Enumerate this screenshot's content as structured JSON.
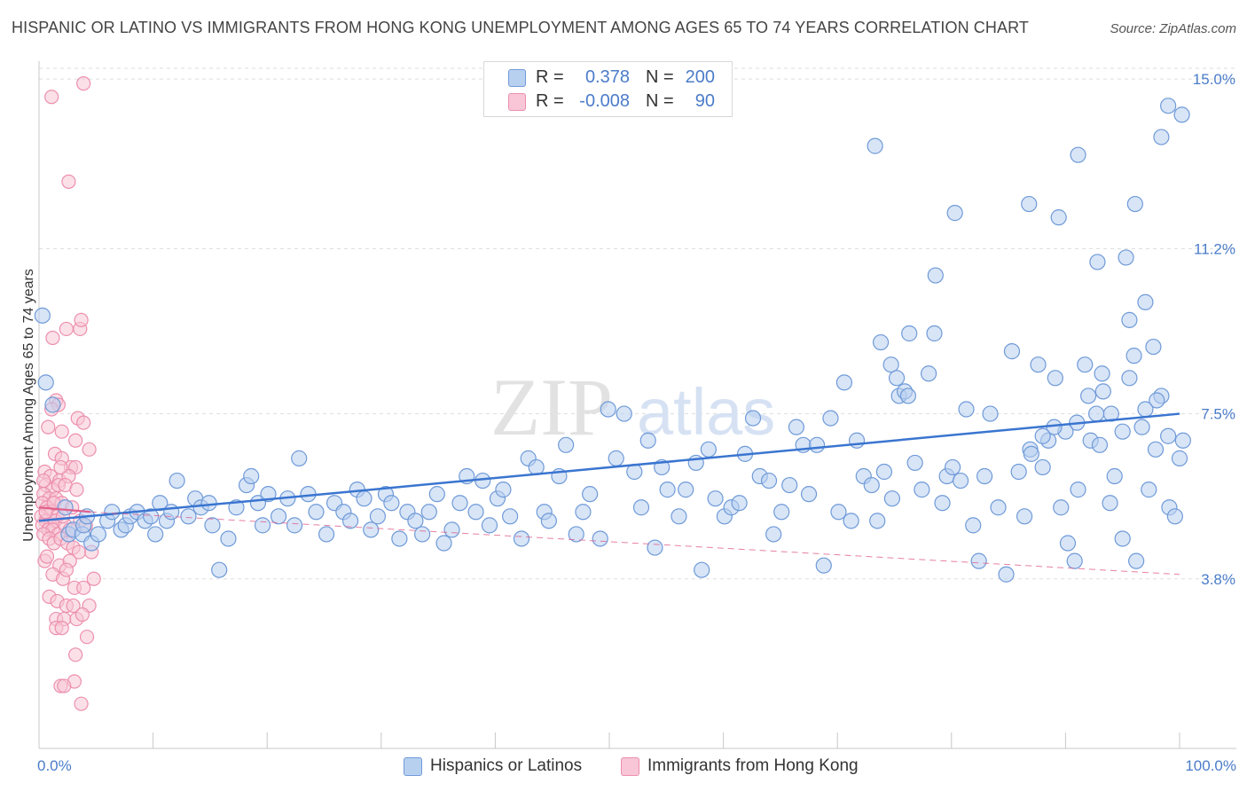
{
  "title": "HISPANIC OR LATINO VS IMMIGRANTS FROM HONG KONG UNEMPLOYMENT AMONG AGES 65 TO 74 YEARS CORRELATION CHART",
  "source": "Source: ZipAtlas.com",
  "watermark": {
    "part1": "ZIP",
    "part2": "atlas"
  },
  "legend": {
    "r_label": "R =",
    "n_label": "N =",
    "series": [
      {
        "r": "0.378",
        "n": "200"
      },
      {
        "r": "-0.008",
        "n": "90"
      }
    ]
  },
  "bottom_legend": [
    "Hispanics or Latinos",
    "Immigrants from Hong Kong"
  ],
  "colors": {
    "blue_fill": "#b8d0f0",
    "blue_stroke": "#6f9ad8",
    "blue_line": "#3a75d0",
    "pink_fill": "#f8c6d6",
    "pink_stroke": "#ec8fae",
    "pink_line": "#e0608c",
    "tick_text": "#4a7cc9",
    "grid": "#dddddd"
  },
  "chart_data": {
    "type": "scatter",
    "ylabel": "Unemployment Among Ages 65 to 74 years",
    "xlim": [
      0,
      100
    ],
    "ylim": [
      0,
      15.4
    ],
    "x_tick_labels": [
      "0.0%",
      "100.0%"
    ],
    "y_ticks": [
      3.8,
      7.5,
      11.2,
      15.0
    ],
    "y_tick_labels": [
      "3.8%",
      "7.5%",
      "11.2%",
      "15.0%"
    ],
    "grid": true,
    "legend_position": "top-center",
    "series": [
      {
        "name": "Hispanics or Latinos",
        "trend": {
          "x": [
            0,
            100
          ],
          "y": [
            5.1,
            7.5
          ]
        },
        "points": [
          [
            0.3,
            9.7
          ],
          [
            0.6,
            8.2
          ],
          [
            1.2,
            7.7
          ],
          [
            2.3,
            5.4
          ],
          [
            2.6,
            4.8
          ],
          [
            3.0,
            4.9
          ],
          [
            3.8,
            4.8
          ],
          [
            3.9,
            5.0
          ],
          [
            4.2,
            5.2
          ],
          [
            4.6,
            4.6
          ],
          [
            5.2,
            4.8
          ],
          [
            6.0,
            5.1
          ],
          [
            6.4,
            5.3
          ],
          [
            7.2,
            4.9
          ],
          [
            7.6,
            5.0
          ],
          [
            8.0,
            5.2
          ],
          [
            8.6,
            5.3
          ],
          [
            9.3,
            5.1
          ],
          [
            9.8,
            5.2
          ],
          [
            10.2,
            4.8
          ],
          [
            10.6,
            5.5
          ],
          [
            11.2,
            5.1
          ],
          [
            11.6,
            5.3
          ],
          [
            12.1,
            6.0
          ],
          [
            13.1,
            5.2
          ],
          [
            13.7,
            5.6
          ],
          [
            14.2,
            5.4
          ],
          [
            14.9,
            5.5
          ],
          [
            15.2,
            5.0
          ],
          [
            15.8,
            4.0
          ],
          [
            16.6,
            4.7
          ],
          [
            17.3,
            5.4
          ],
          [
            18.2,
            5.9
          ],
          [
            18.6,
            6.1
          ],
          [
            19.2,
            5.5
          ],
          [
            19.6,
            5.0
          ],
          [
            20.1,
            5.7
          ],
          [
            21.0,
            5.2
          ],
          [
            21.8,
            5.6
          ],
          [
            22.4,
            5.0
          ],
          [
            22.8,
            6.5
          ],
          [
            23.6,
            5.7
          ],
          [
            24.3,
            5.3
          ],
          [
            25.2,
            4.8
          ],
          [
            25.9,
            5.5
          ],
          [
            26.7,
            5.3
          ],
          [
            27.3,
            5.1
          ],
          [
            27.9,
            5.8
          ],
          [
            28.5,
            5.6
          ],
          [
            29.1,
            4.9
          ],
          [
            29.7,
            5.2
          ],
          [
            30.4,
            5.7
          ],
          [
            30.9,
            5.5
          ],
          [
            31.6,
            4.7
          ],
          [
            32.3,
            5.3
          ],
          [
            33.0,
            5.1
          ],
          [
            33.6,
            4.8
          ],
          [
            34.2,
            5.3
          ],
          [
            34.9,
            5.7
          ],
          [
            35.5,
            4.6
          ],
          [
            36.2,
            4.9
          ],
          [
            36.9,
            5.5
          ],
          [
            37.5,
            6.1
          ],
          [
            38.3,
            5.3
          ],
          [
            38.9,
            6.0
          ],
          [
            39.5,
            5.0
          ],
          [
            40.2,
            5.6
          ],
          [
            40.7,
            5.8
          ],
          [
            41.3,
            5.2
          ],
          [
            42.3,
            4.7
          ],
          [
            42.9,
            6.5
          ],
          [
            43.6,
            6.3
          ],
          [
            44.3,
            5.3
          ],
          [
            44.7,
            5.1
          ],
          [
            45.6,
            6.1
          ],
          [
            46.2,
            6.8
          ],
          [
            47.1,
            4.8
          ],
          [
            47.7,
            5.3
          ],
          [
            48.3,
            5.7
          ],
          [
            49.2,
            4.7
          ],
          [
            49.9,
            7.6
          ],
          [
            50.6,
            6.5
          ],
          [
            51.3,
            7.5
          ],
          [
            52.2,
            6.2
          ],
          [
            52.8,
            5.4
          ],
          [
            53.4,
            6.9
          ],
          [
            54.0,
            4.5
          ],
          [
            54.6,
            6.3
          ],
          [
            55.1,
            5.8
          ],
          [
            56.1,
            5.2
          ],
          [
            56.7,
            5.8
          ],
          [
            57.6,
            6.4
          ],
          [
            58.1,
            4.0
          ],
          [
            58.7,
            6.7
          ],
          [
            59.3,
            5.6
          ],
          [
            60.1,
            5.2
          ],
          [
            60.7,
            5.4
          ],
          [
            61.4,
            5.5
          ],
          [
            61.9,
            6.6
          ],
          [
            62.6,
            7.4
          ],
          [
            63.2,
            6.1
          ],
          [
            64.0,
            6.0
          ],
          [
            64.4,
            4.8
          ],
          [
            65.1,
            5.3
          ],
          [
            65.8,
            5.9
          ],
          [
            66.4,
            7.2
          ],
          [
            67.0,
            6.8
          ],
          [
            67.5,
            5.7
          ],
          [
            68.2,
            6.8
          ],
          [
            68.8,
            4.1
          ],
          [
            69.4,
            7.4
          ],
          [
            70.1,
            5.3
          ],
          [
            70.6,
            8.2
          ],
          [
            71.2,
            5.1
          ],
          [
            71.7,
            6.9
          ],
          [
            72.3,
            6.1
          ],
          [
            73.0,
            5.9
          ],
          [
            73.5,
            5.1
          ],
          [
            74.1,
            6.2
          ],
          [
            74.8,
            5.6
          ],
          [
            75.4,
            7.9
          ],
          [
            75.9,
            8.0
          ],
          [
            76.3,
            9.3
          ],
          [
            76.8,
            6.4
          ],
          [
            77.4,
            5.8
          ],
          [
            78.0,
            8.4
          ],
          [
            78.5,
            9.3
          ],
          [
            79.2,
            5.5
          ],
          [
            79.6,
            6.1
          ],
          [
            80.1,
            6.3
          ],
          [
            80.8,
            6.0
          ],
          [
            81.3,
            7.6
          ],
          [
            81.9,
            5.0
          ],
          [
            82.4,
            4.2
          ],
          [
            82.9,
            6.1
          ],
          [
            83.4,
            7.5
          ],
          [
            84.1,
            5.4
          ],
          [
            84.8,
            3.9
          ],
          [
            85.3,
            8.9
          ],
          [
            85.9,
            6.2
          ],
          [
            86.4,
            5.2
          ],
          [
            86.9,
            6.7
          ],
          [
            87.6,
            8.6
          ],
          [
            88.0,
            6.3
          ],
          [
            88.5,
            6.9
          ],
          [
            89.1,
            8.3
          ],
          [
            89.6,
            5.4
          ],
          [
            90.2,
            4.6
          ],
          [
            90.8,
            4.2
          ],
          [
            91.1,
            5.8
          ],
          [
            91.7,
            8.6
          ],
          [
            92.2,
            6.9
          ],
          [
            92.7,
            7.5
          ],
          [
            93.3,
            8.0
          ],
          [
            93.9,
            5.5
          ],
          [
            94.3,
            6.1
          ],
          [
            95.0,
            4.7
          ],
          [
            95.6,
            8.3
          ],
          [
            96.2,
            4.2
          ],
          [
            96.7,
            7.2
          ],
          [
            97.3,
            5.8
          ],
          [
            97.9,
            6.7
          ],
          [
            98.4,
            7.9
          ],
          [
            99.1,
            5.4
          ],
          [
            99.6,
            5.2
          ],
          [
            100.0,
            6.5
          ],
          [
            100.3,
            6.9
          ],
          [
            99.0,
            7.0
          ],
          [
            98.0,
            7.8
          ],
          [
            97.0,
            7.6
          ],
          [
            96.0,
            8.8
          ],
          [
            95.0,
            7.1
          ],
          [
            94.0,
            7.5
          ],
          [
            93.0,
            6.8
          ],
          [
            92.0,
            7.9
          ],
          [
            91.0,
            7.3
          ],
          [
            90.0,
            7.1
          ],
          [
            89.0,
            7.2
          ],
          [
            88.0,
            7.0
          ],
          [
            87.0,
            6.6
          ],
          [
            78.6,
            10.6
          ],
          [
            80.3,
            12.0
          ],
          [
            86.8,
            12.2
          ],
          [
            89.4,
            11.9
          ],
          [
            91.1,
            13.3
          ],
          [
            92.8,
            10.9
          ],
          [
            95.3,
            11.0
          ],
          [
            96.1,
            12.2
          ],
          [
            97.0,
            10.0
          ],
          [
            98.4,
            13.7
          ],
          [
            99.0,
            14.4
          ],
          [
            100.2,
            14.2
          ],
          [
            97.7,
            9.0
          ],
          [
            95.6,
            9.6
          ],
          [
            93.2,
            8.4
          ],
          [
            73.3,
            13.5
          ],
          [
            73.8,
            9.1
          ],
          [
            74.7,
            8.6
          ],
          [
            75.2,
            8.3
          ],
          [
            76.2,
            7.9
          ]
        ]
      },
      {
        "name": "Immigrants from Hong Kong",
        "trend": {
          "x": [
            0,
            4.5
          ],
          "y": [
            5.4,
            5.3
          ]
        },
        "trend_dashed": {
          "x": [
            4.5,
            100
          ],
          "y": [
            5.3,
            3.9
          ]
        },
        "points": [
          [
            1.1,
            14.6
          ],
          [
            3.9,
            14.9
          ],
          [
            2.6,
            12.7
          ],
          [
            1.2,
            9.2
          ],
          [
            2.4,
            9.4
          ],
          [
            3.6,
            9.4
          ],
          [
            3.7,
            9.6
          ],
          [
            1.5,
            7.8
          ],
          [
            1.7,
            7.7
          ],
          [
            1.1,
            7.6
          ],
          [
            3.4,
            7.4
          ],
          [
            3.9,
            7.3
          ],
          [
            0.8,
            7.2
          ],
          [
            2.0,
            7.1
          ],
          [
            3.2,
            6.9
          ],
          [
            4.4,
            6.7
          ],
          [
            1.4,
            6.6
          ],
          [
            2.0,
            6.5
          ],
          [
            2.8,
            6.3
          ],
          [
            3.2,
            6.3
          ],
          [
            0.5,
            6.2
          ],
          [
            1.0,
            6.1
          ],
          [
            1.8,
            6.0
          ],
          [
            2.6,
            6.1
          ],
          [
            0.6,
            5.9
          ],
          [
            1.2,
            5.8
          ],
          [
            1.7,
            5.9
          ],
          [
            2.3,
            5.9
          ],
          [
            0.4,
            5.7
          ],
          [
            0.9,
            5.6
          ],
          [
            1.5,
            5.6
          ],
          [
            2.0,
            5.5
          ],
          [
            0.3,
            5.5
          ],
          [
            0.7,
            5.4
          ],
          [
            1.1,
            5.3
          ],
          [
            1.6,
            5.2
          ],
          [
            0.2,
            5.2
          ],
          [
            0.6,
            5.1
          ],
          [
            1.0,
            5.0
          ],
          [
            1.4,
            5.1
          ],
          [
            0.3,
            5.0
          ],
          [
            0.8,
            4.9
          ],
          [
            1.2,
            4.9
          ],
          [
            1.7,
            4.8
          ],
          [
            2.3,
            5.0
          ],
          [
            2.7,
            4.9
          ],
          [
            3.6,
            5.1
          ],
          [
            4.1,
            5.0
          ],
          [
            0.4,
            4.8
          ],
          [
            0.9,
            4.7
          ],
          [
            1.3,
            4.6
          ],
          [
            1.9,
            4.7
          ],
          [
            2.5,
            4.6
          ],
          [
            3.0,
            4.5
          ],
          [
            3.5,
            4.4
          ],
          [
            4.6,
            4.4
          ],
          [
            0.5,
            4.2
          ],
          [
            1.8,
            4.1
          ],
          [
            2.7,
            4.2
          ],
          [
            1.2,
            3.9
          ],
          [
            2.1,
            3.8
          ],
          [
            3.1,
            3.6
          ],
          [
            4.8,
            3.8
          ],
          [
            0.9,
            3.4
          ],
          [
            1.6,
            3.3
          ],
          [
            2.4,
            3.2
          ],
          [
            3.0,
            3.2
          ],
          [
            4.4,
            3.2
          ],
          [
            1.5,
            2.9
          ],
          [
            2.2,
            2.9
          ],
          [
            3.3,
            2.9
          ],
          [
            3.8,
            3.0
          ],
          [
            1.5,
            2.7
          ],
          [
            2.0,
            2.7
          ],
          [
            4.2,
            2.5
          ],
          [
            3.2,
            2.1
          ],
          [
            1.9,
            1.4
          ],
          [
            3.1,
            1.5
          ],
          [
            2.2,
            1.4
          ],
          [
            3.7,
            1.0
          ],
          [
            0.6,
            5.3
          ],
          [
            1.3,
            5.5
          ],
          [
            2.1,
            5.2
          ],
          [
            2.9,
            5.4
          ],
          [
            0.4,
            6.0
          ],
          [
            1.9,
            6.3
          ],
          [
            3.3,
            5.8
          ],
          [
            0.7,
            4.3
          ],
          [
            2.4,
            4.0
          ],
          [
            3.9,
            3.6
          ]
        ]
      }
    ]
  }
}
